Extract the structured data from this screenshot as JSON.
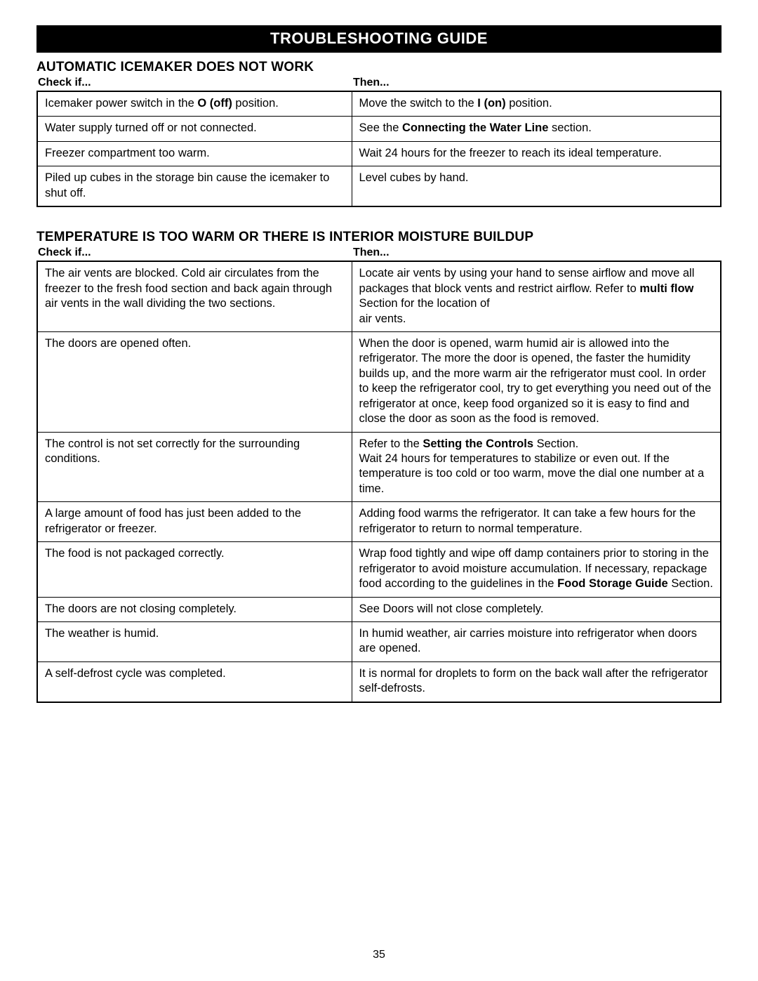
{
  "banner": "TROUBLESHOOTING GUIDE",
  "page_number": "35",
  "columns": {
    "check": "Check if...",
    "then": "Then..."
  },
  "sections": [
    {
      "heading": "AUTOMATIC ICEMAKER DOES NOT WORK",
      "rows": [
        {
          "check": [
            {
              "t": "Icemaker power switch in the "
            },
            {
              "t": "O (off)",
              "b": true
            },
            {
              "t": " position."
            }
          ],
          "then": [
            {
              "t": "Move the switch to the "
            },
            {
              "t": "I (on)",
              "b": true
            },
            {
              "t": " position."
            }
          ]
        },
        {
          "check": [
            {
              "t": "Water supply turned off or not connected."
            }
          ],
          "then": [
            {
              "t": "See the "
            },
            {
              "t": "Connecting the Water Line",
              "b": true
            },
            {
              "t": " section."
            }
          ]
        },
        {
          "check": [
            {
              "t": "Freezer compartment too warm."
            }
          ],
          "then": [
            {
              "t": "Wait 24 hours for the freezer to reach its ideal temperature."
            }
          ]
        },
        {
          "check": [
            {
              "t": "Piled up cubes in the storage bin cause the icemaker to shut off."
            }
          ],
          "then": [
            {
              "t": "Level cubes by hand."
            }
          ]
        }
      ]
    },
    {
      "heading": "TEMPERATURE IS TOO WARM OR THERE IS INTERIOR MOISTURE BUILDUP",
      "rows": [
        {
          "check": [
            {
              "t": "The air vents are blocked. Cold air circulates from the freezer to the fresh food section and back again through air vents in the wall dividing the two sections."
            }
          ],
          "then": [
            {
              "t": "Locate air vents by using your hand to sense airflow and move all packages that block vents and restrict airflow. Refer to "
            },
            {
              "t": "multi flow",
              "b": true
            },
            {
              "t": " Section for the location of\nair vents."
            }
          ]
        },
        {
          "check": [
            {
              "t": "The doors are opened often."
            }
          ],
          "then": [
            {
              "t": "When the door is opened, warm humid air is allowed into the refrigerator. The more the door is opened, the faster the humidity builds up, and the more warm air the refrigerator must cool. In order to keep the refrigerator cool, try to get everything you need out of the refrigerator at once, keep food organized so it is easy to find and close the door as soon as the food is removed."
            }
          ]
        },
        {
          "check": [
            {
              "t": "The control is not set correctly for the surrounding conditions."
            }
          ],
          "then": [
            {
              "t": "Refer to the "
            },
            {
              "t": "Setting the Controls",
              "b": true
            },
            {
              "t": " Section.\nWait 24 hours for temperatures to stabilize or even out. If the temperature is too cold or too warm, move the dial one number at a time."
            }
          ]
        },
        {
          "check": [
            {
              "t": "A large amount of food has just been added to the refrigerator or freezer."
            }
          ],
          "then": [
            {
              "t": "Adding food warms the refrigerator. It can take a few hours for the refrigerator to return to normal temperature."
            }
          ]
        },
        {
          "check": [
            {
              "t": "The food is not packaged correctly."
            }
          ],
          "then": [
            {
              "t": "Wrap food tightly and wipe off damp containers prior to storing in the refrigerator to avoid moisture accumulation. If necessary, repackage food according to the guidelines in the "
            },
            {
              "t": "Food Storage Guide",
              "b": true
            },
            {
              "t": " Section."
            }
          ]
        },
        {
          "check": [
            {
              "t": "The doors are not closing completely."
            }
          ],
          "then": [
            {
              "t": "See Doors will not close completely."
            }
          ]
        },
        {
          "check": [
            {
              "t": "The weather is humid."
            }
          ],
          "then": [
            {
              "t": "In humid weather, air carries moisture into refrigerator when doors are opened."
            }
          ]
        },
        {
          "check": [
            {
              "t": "A self-defrost cycle was completed."
            }
          ],
          "then": [
            {
              "t": "It is normal for droplets to form on the back wall after the refrigerator self-defrosts."
            }
          ]
        }
      ]
    }
  ]
}
